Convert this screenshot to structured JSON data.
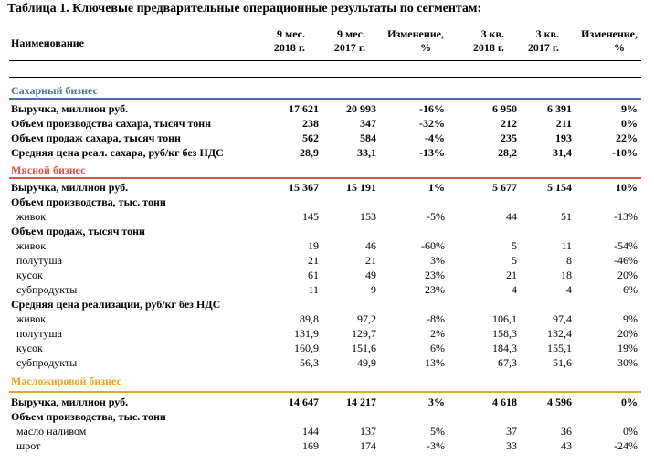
{
  "title": "Таблица 1. Ключевые предварительные операционные результаты по сегментам:",
  "header": {
    "name": "Наименование",
    "col1": [
      "9 мес.",
      "2018 г."
    ],
    "col2": [
      "9 мес.",
      "2017 г."
    ],
    "col3": [
      "Изменение,",
      "%"
    ],
    "col4": [
      "3 кв.",
      "2018 г."
    ],
    "col5": [
      "3 кв.",
      "2017 г."
    ],
    "col6": [
      "Изменение,",
      "%"
    ]
  },
  "colors": {
    "sugar": "#4a6fa5",
    "meat": "#d9534f",
    "oil": "#e0a52a"
  },
  "sections": [
    {
      "name": "Сахарный бизнес",
      "rows": [
        {
          "label": "Выручка, миллион руб.",
          "bold": true,
          "v": [
            "17 621",
            "20 993",
            "-16%",
            "6 950",
            "6 391",
            "9%"
          ]
        },
        {
          "label": "Объем производства сахара, тысяч тонн",
          "bold": true,
          "sublabel": false,
          "v": [
            "238",
            "347",
            "-32%",
            "212",
            "211",
            "0%"
          ]
        },
        {
          "label": "Объем продаж сахара, тысяч тонн",
          "bold": true,
          "v": [
            "562",
            "584",
            "-4%",
            "235",
            "193",
            "22%"
          ]
        },
        {
          "label": "Средняя цена реал. сахара, руб/кг без НДС",
          "bold": true,
          "v": [
            "28,9",
            "33,1",
            "-13%",
            "28,2",
            "31,4",
            "-10%"
          ]
        }
      ]
    },
    {
      "name": "Мясной бизнес",
      "rows": [
        {
          "label": "Выручка, миллион руб.",
          "bold": true,
          "v": [
            "15 367",
            "15 191",
            "1%",
            "5 677",
            "5 154",
            "10%"
          ]
        },
        {
          "label": "Объем производства, тыс. тонн",
          "bold": true,
          "heading": true,
          "v": []
        },
        {
          "label": "живок",
          "sub": true,
          "v": [
            "145",
            "153",
            "-5%",
            "44",
            "51",
            "-13%"
          ]
        },
        {
          "label": "Объем продаж, тысяч тонн",
          "bold": true,
          "heading": true,
          "v": []
        },
        {
          "label": "живок",
          "sub": true,
          "v": [
            "19",
            "46",
            "-60%",
            "5",
            "11",
            "-54%"
          ]
        },
        {
          "label": "полутуша",
          "sub": true,
          "v": [
            "21",
            "21",
            "3%",
            "5",
            "8",
            "-46%"
          ]
        },
        {
          "label": "кусок",
          "sub": true,
          "v": [
            "61",
            "49",
            "23%",
            "21",
            "18",
            "20%"
          ]
        },
        {
          "label": "субпродукты",
          "sub": true,
          "v": [
            "11",
            "9",
            "23%",
            "4",
            "4",
            "6%"
          ]
        },
        {
          "label": "Средняя цена реализации, руб/кг без НДС",
          "bold": true,
          "heading": true,
          "v": []
        },
        {
          "label": "живок",
          "sub": true,
          "v": [
            "89,8",
            "97,2",
            "-8%",
            "106,1",
            "97,4",
            "9%"
          ]
        },
        {
          "label": "полутуша",
          "sub": true,
          "v": [
            "131,9",
            "129,7",
            "2%",
            "158,3",
            "132,4",
            "20%"
          ]
        },
        {
          "label": "кусок",
          "sub": true,
          "v": [
            "160,9",
            "151,6",
            "6%",
            "184,3",
            "155,1",
            "19%"
          ]
        },
        {
          "label": "субпродукты",
          "sub": true,
          "v": [
            "56,3",
            "49,9",
            "13%",
            "67,3",
            "51,6",
            "30%"
          ]
        }
      ]
    },
    {
      "name": "Масложировой бизнес",
      "rows": [
        {
          "label": "Выручка, миллион руб.",
          "bold": true,
          "v": [
            "14 647",
            "14 217",
            "3%",
            "4 618",
            "4 596",
            "0%"
          ]
        },
        {
          "label": "Объем производства, тыс. тонн",
          "bold": true,
          "heading": true,
          "v": []
        },
        {
          "label": "масло наливом",
          "sub": true,
          "v": [
            "144",
            "137",
            "5%",
            "37",
            "36",
            "0%"
          ]
        },
        {
          "label": "шрот",
          "sub": true,
          "v": [
            "169",
            "174",
            "-3%",
            "33",
            "43",
            "-24%"
          ]
        }
      ]
    }
  ]
}
